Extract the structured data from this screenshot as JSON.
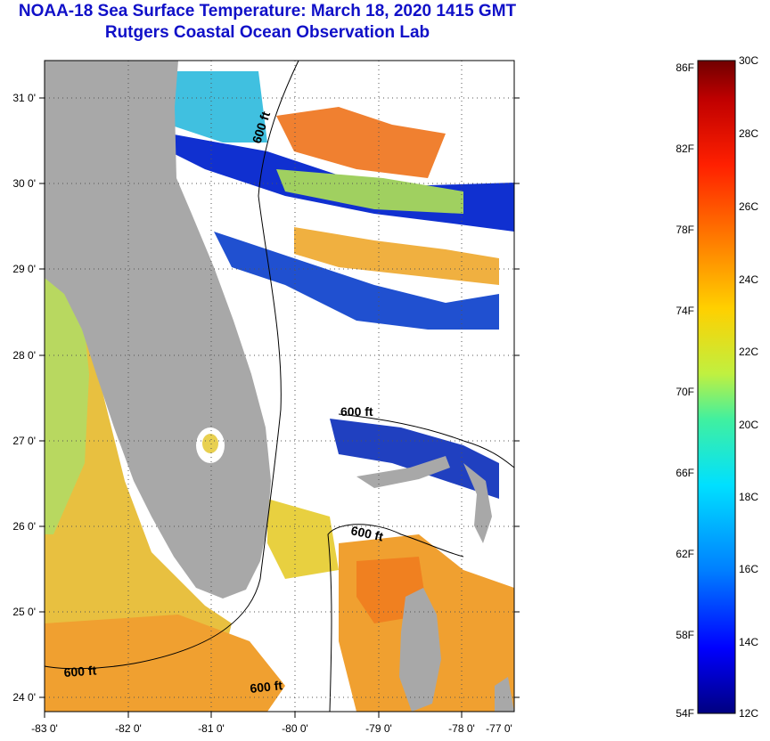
{
  "header": {
    "title": "NOAA-18 Sea Surface Temperature:  March 18, 2020 1415 GMT",
    "subtitle": "Rutgers Coastal Ocean Observation Lab"
  },
  "map": {
    "lat_labels": [
      "31 0'",
      "30 0'",
      "29 0'",
      "28 0'",
      "27 0'",
      "26 0'",
      "25 0'",
      "24 0'"
    ],
    "lon_labels": [
      "-83 0'",
      "-82 0'",
      "-81 0'",
      "-80 0'",
      "-79 0'",
      "-78 0'",
      "-77 0'"
    ],
    "contour_label": "600 ft",
    "colors": {
      "land": "#a8a8a8",
      "cloud": "#ffffff",
      "warm": "#f0a030",
      "cool": "#1030d0"
    }
  },
  "colorbar": {
    "fahrenheit_labels": [
      "86F",
      "82F",
      "78F",
      "74F",
      "70F",
      "66F",
      "62F",
      "58F",
      "54F"
    ],
    "celsius_labels": [
      "30C",
      "28C",
      "26C",
      "24C",
      "22C",
      "20C",
      "18C",
      "16C",
      "14C",
      "12C"
    ],
    "gradient_stops": [
      "#000080",
      "#0000ff",
      "#0080ff",
      "#00e0ff",
      "#40f0a0",
      "#c0f040",
      "#ffd000",
      "#ff8000",
      "#ff2000",
      "#c00000",
      "#700000"
    ]
  }
}
